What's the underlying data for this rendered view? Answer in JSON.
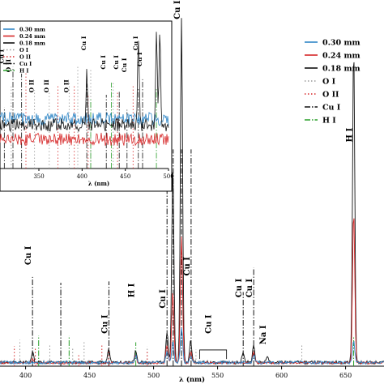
{
  "chart_data": [
    {
      "type": "line",
      "role": "main",
      "xlabel": "λ (nm)",
      "xlim": [
        380,
        680
      ],
      "ylim": [
        0,
        100
      ],
      "x_ticks": [
        400,
        450,
        500,
        550,
        600,
        650
      ],
      "legend_position": "top-right",
      "legend": [
        {
          "label": "0.30 mm",
          "style": "solid",
          "color": "#2f86c6"
        },
        {
          "label": "0.24 mm",
          "style": "solid",
          "color": "#d62728"
        },
        {
          "label": "0.18 mm",
          "style": "solid",
          "color": "#111111"
        },
        {
          "label": "O I",
          "style": "dotted",
          "color": "#999999"
        },
        {
          "label": "O II",
          "style": "dotted",
          "color": "#d62728"
        },
        {
          "label": "Cu I",
          "style": "dashdot",
          "color": "#111111"
        },
        {
          "label": "H I",
          "style": "dashdot",
          "color": "#2ca02c"
        }
      ],
      "series": [
        {
          "name": "0.30 mm",
          "color": "#2f86c6",
          "peaks": [
            [
              486,
              2
            ],
            [
              510.5,
              3
            ],
            [
              515,
              6
            ],
            [
              521.8,
              10
            ],
            [
              529,
              2
            ],
            [
              578.2,
              2
            ],
            [
              656.3,
              6
            ]
          ]
        },
        {
          "name": "0.24 mm",
          "color": "#d62728",
          "peaks": [
            [
              405.4,
              1
            ],
            [
              486,
              2
            ],
            [
              510.5,
              5
            ],
            [
              515,
              20
            ],
            [
              521.8,
              35
            ],
            [
              529,
              3
            ],
            [
              578.2,
              3
            ],
            [
              656.3,
              42
            ]
          ]
        },
        {
          "name": "0.18 mm",
          "color": "#111111",
          "peaks": [
            [
              405.4,
              3
            ],
            [
              465,
              4
            ],
            [
              486,
              3
            ],
            [
              510.5,
              8
            ],
            [
              515,
              54
            ],
            [
              521.8,
              95
            ],
            [
              529,
              6
            ],
            [
              570,
              3
            ],
            [
              578.2,
              5
            ],
            [
              589,
              2
            ],
            [
              656.3,
              88
            ]
          ]
        }
      ],
      "reference_lines": {
        "Cu I": [
          405.4,
          427.5,
          465.1,
          510.5,
          515.3,
          521.8,
          529.3,
          570.0,
          578.2
        ],
        "H I": [
          410.2,
          434.0,
          486.1,
          656.3
        ],
        "O I": [
          395.5,
          418.9,
          436.8,
          445.7,
          495.0,
          533.1,
          615.8
        ],
        "O II": [
          391.2,
          407.6,
          441.5,
          459.6,
          464.9,
          495.0
        ]
      },
      "annotations": [
        {
          "text": "Cu I",
          "x": 405.4,
          "level": 28
        },
        {
          "text": "Cu I",
          "x": 465.1,
          "level": 9
        },
        {
          "text": "H I",
          "x": 486.1,
          "level": 19
        },
        {
          "text": "Cu I",
          "x": 510.5,
          "level": 16
        },
        {
          "text": "Cu I",
          "x": 515.3,
          "level": 52
        },
        {
          "text": "Cu I",
          "x": 521.8,
          "level": 96
        },
        {
          "text": "Cu I",
          "x": 529.3,
          "level": 25
        },
        {
          "text": "Cu I",
          "x": 546,
          "level": 9
        },
        {
          "text": "Cu I",
          "x": 570.0,
          "level": 19
        },
        {
          "text": "Cu I",
          "x": 578.2,
          "level": 19
        },
        {
          "text": "Na I",
          "x": 589.0,
          "level": 6
        },
        {
          "text": "H I",
          "x": 656.3,
          "level": 62
        }
      ]
    },
    {
      "type": "line",
      "role": "inset",
      "xlabel": "λ (nm)",
      "xlim": [
        305,
        500
      ],
      "ylim": [
        0,
        10
      ],
      "x_ticks": [
        350,
        400,
        450,
        500
      ],
      "legend_position": "top-left",
      "legend": [
        {
          "label": "0.30 mm",
          "style": "solid",
          "color": "#2f86c6"
        },
        {
          "label": "0.24 mm",
          "style": "solid",
          "color": "#d62728"
        },
        {
          "label": "0.18 mm",
          "style": "solid",
          "color": "#111111"
        },
        {
          "label": "O I",
          "style": "dotted",
          "color": "#999999"
        },
        {
          "label": "O II",
          "style": "dotted",
          "color": "#d62728"
        },
        {
          "label": "Cu I",
          "style": "dashdot",
          "color": "#111111"
        },
        {
          "label": "H I",
          "style": "dashdot",
          "color": "#2ca02c"
        }
      ],
      "series": [
        {
          "name": "0.30 mm",
          "color": "#2f86c6",
          "level": 3.4
        },
        {
          "name": "0.24 mm",
          "color": "#d62728",
          "level": 2.0
        },
        {
          "name": "0.18 mm",
          "color": "#111111",
          "level": 3.0
        }
      ],
      "peaks": [
        [
          405.4,
          6.5
        ],
        [
          465.1,
          9.2
        ],
        [
          486.1,
          9.8
        ],
        [
          490.0,
          9.6
        ]
      ],
      "annotations": [
        {
          "text": "Cu I",
          "x": 310,
          "level": 7.2
        },
        {
          "text": "O II",
          "x": 318,
          "level": 6.6
        },
        {
          "text": "O II",
          "x": 345,
          "level": 5.2
        },
        {
          "text": "O II",
          "x": 362,
          "level": 5.2
        },
        {
          "text": "O II",
          "x": 385,
          "level": 5.2
        },
        {
          "text": "Cu I",
          "x": 405.4,
          "level": 8.1
        },
        {
          "text": "Cu I",
          "x": 428,
          "level": 6.8
        },
        {
          "text": "Cu I",
          "x": 443,
          "level": 6.8
        },
        {
          "text": "Cu I",
          "x": 452,
          "level": 6.6
        },
        {
          "text": "Cu I",
          "x": 465.1,
          "level": 8.1
        },
        {
          "text": "Cu I",
          "x": 470,
          "level": 7.0
        }
      ]
    }
  ]
}
